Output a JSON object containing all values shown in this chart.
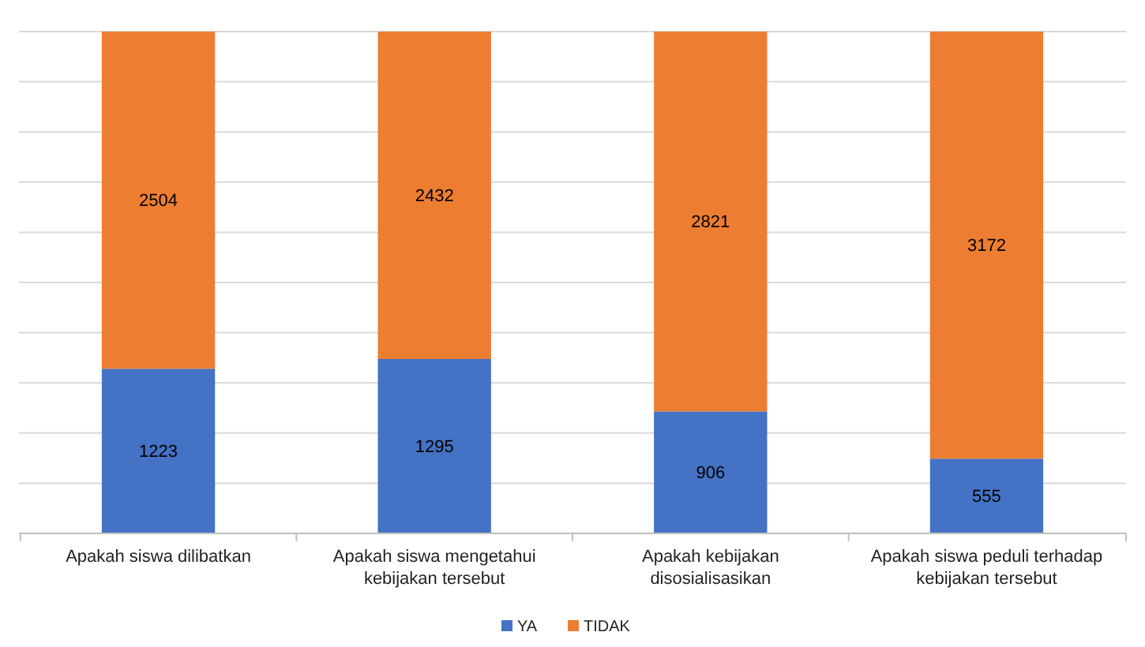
{
  "chart_data": {
    "type": "bar",
    "stacked": true,
    "categories": [
      "Apakah siswa dilibatkan",
      "Apakah siswa mengetahui kebijakan tersebut",
      "Apakah kebijakan disosialisasikan",
      "Apakah siswa peduli terhadap kebijakan tersebut"
    ],
    "series": [
      {
        "name": "YA",
        "color": "#4472c4",
        "values": [
          1223,
          1295,
          906,
          555
        ]
      },
      {
        "name": "TIDAK",
        "color": "#ed7d31",
        "values": [
          2504,
          2432,
          2821,
          3172
        ]
      }
    ],
    "ylim": [
      0,
      3727
    ],
    "yticks": [
      {
        "value": 0,
        "label": null
      },
      {
        "value": 372.7,
        "label": null
      },
      {
        "value": 745.4,
        "label": null
      },
      {
        "value": 1118.1,
        "label": null
      },
      {
        "value": 1490.8,
        "label": null
      },
      {
        "value": 1863.5,
        "label": null
      },
      {
        "value": 2236.2,
        "label": null
      },
      {
        "value": 2608.9,
        "label": null
      },
      {
        "value": 2981.6,
        "label": null
      },
      {
        "value": 3354.3,
        "label": null
      },
      {
        "value": 3727,
        "label": null
      }
    ],
    "tick_labels": "x",
    "grid": "y",
    "data_labels": true,
    "legend": "bottom"
  }
}
